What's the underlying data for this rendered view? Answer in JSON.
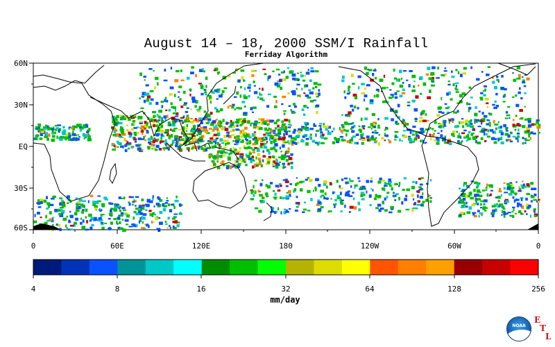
{
  "title": "August 14 – 18, 2000 SSM/I Rainfall",
  "subtitle": "Ferriday Algorithm",
  "map": {
    "lat_labels": [
      "60N",
      "30N",
      "EQ",
      "30S",
      "60S"
    ],
    "lon_labels": [
      "0",
      "60E",
      "120E",
      "180",
      "120W",
      "60W",
      "0"
    ]
  },
  "colorbar": {
    "colors": [
      "#001a7a",
      "#0033b8",
      "#0a52ff",
      "#009499",
      "#00c8c8",
      "#00ffff",
      "#008c00",
      "#00be00",
      "#00ff00",
      "#b4b400",
      "#dcdc00",
      "#ffff00",
      "#ff5500",
      "#ff7f00",
      "#ffa000",
      "#960000",
      "#c80000",
      "#ff0000"
    ],
    "tick_labels": [
      "4",
      "8",
      "16",
      "32",
      "64",
      "128",
      "256"
    ],
    "units": "mm/day"
  },
  "logo": {
    "noaa": "NOAA",
    "etl": [
      "E",
      "T",
      "L"
    ]
  },
  "rain_colors": {
    "light": "#0a52ff",
    "cyan": "#00c8c8",
    "green": "#00be00",
    "yellow": "#dcdc00",
    "orange": "#ff7f00",
    "red": "#c80000",
    "coast": "#000000"
  }
}
